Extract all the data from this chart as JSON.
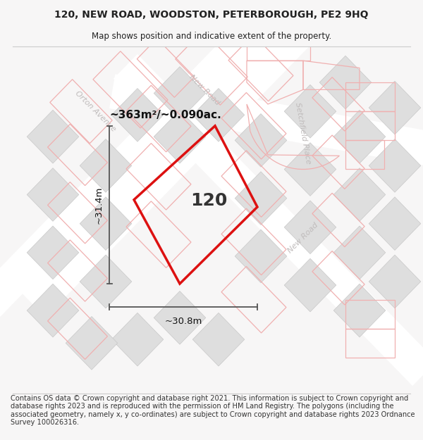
{
  "title_line1": "120, NEW ROAD, WOODSTON, PETERBOROUGH, PE2 9HQ",
  "title_line2": "Map shows position and indicative extent of the property.",
  "footer_text": "Contains OS data © Crown copyright and database right 2021. This information is subject to Crown copyright and database rights 2023 and is reproduced with the permission of HM Land Registry. The polygons (including the associated geometry, namely x, y co-ordinates) are subject to Crown copyright and database rights 2023 Ordnance Survey 100026316.",
  "area_label": "~363m²/~0.090ac.",
  "width_label": "~30.8m",
  "height_label": "~31.4m",
  "property_number": "120",
  "bg_color": "#f7f6f6",
  "map_bg": "#f7f6f6",
  "pink": "#f0b0b0",
  "dim_color": "#555555",
  "road_label_color": "#c0bcbc",
  "plot_red": "#dd1111",
  "bldg_fill": "#dedede",
  "bldg_edge": "#c8c8c8"
}
